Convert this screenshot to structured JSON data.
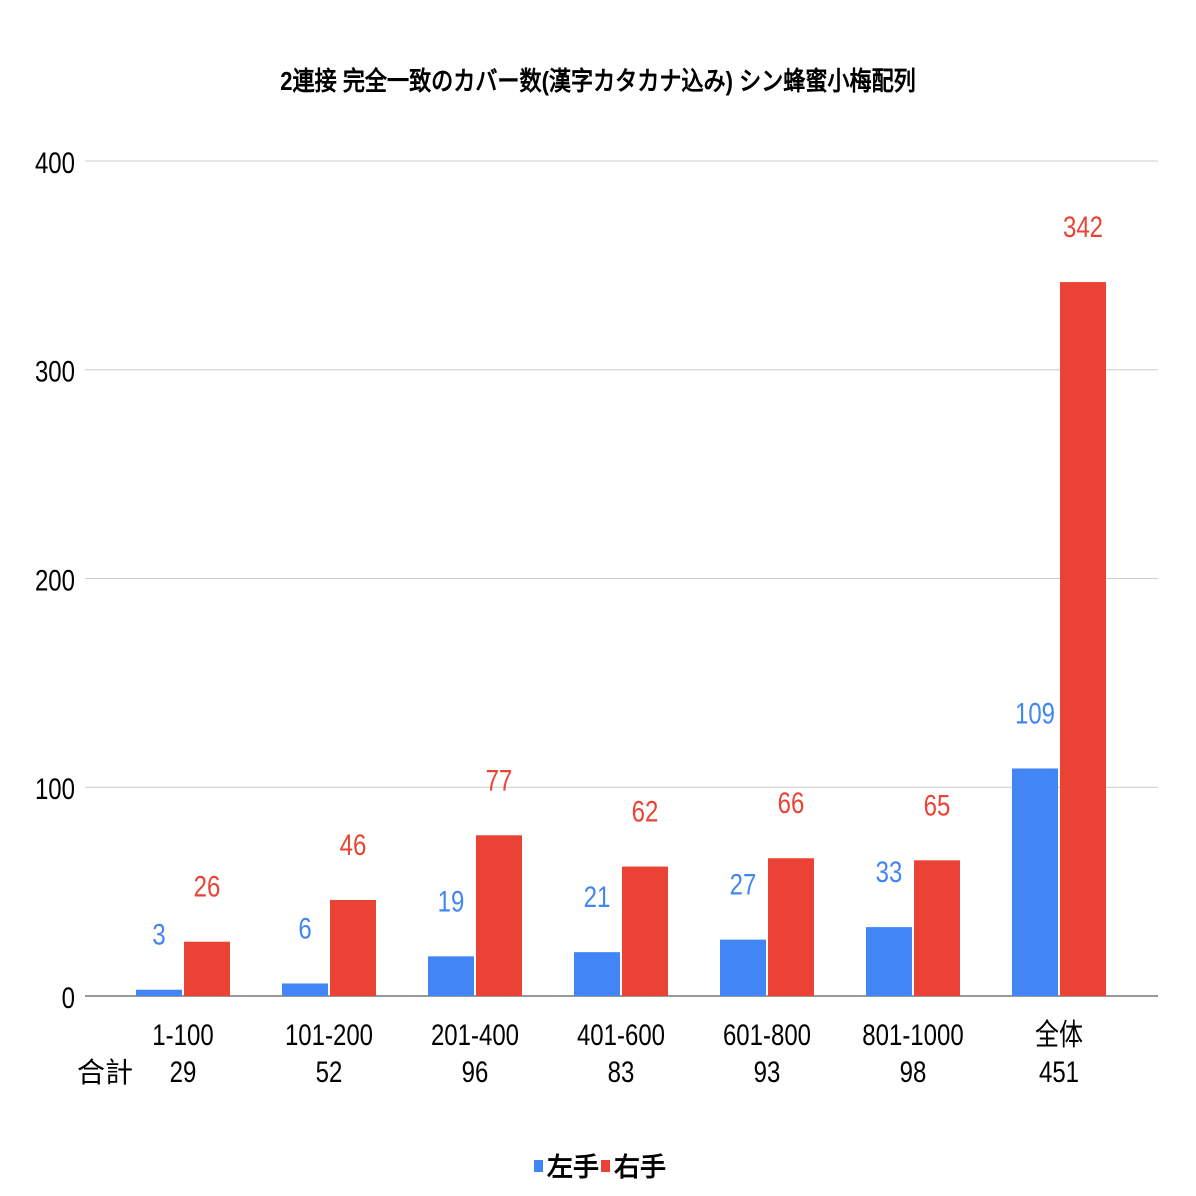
{
  "chart_data": {
    "type": "bar",
    "title": "2連接 完全一致のカバー数(漢字カタカナ込み) シン蜂蜜小梅配列",
    "categories": [
      "1-100",
      "101-200",
      "201-400",
      "401-600",
      "601-800",
      "801-1000",
      "全体"
    ],
    "totals_label": "合計",
    "totals": [
      "29",
      "52",
      "96",
      "83",
      "93",
      "98",
      "451"
    ],
    "series": [
      {
        "name": "左手",
        "color": "#4285f4",
        "values": [
          3,
          6,
          19,
          21,
          27,
          33,
          109
        ]
      },
      {
        "name": "右手",
        "color": "#ea4335",
        "values": [
          26,
          46,
          77,
          62,
          66,
          65,
          342
        ]
      }
    ],
    "ylim": [
      0,
      400
    ],
    "yticks": [
      0,
      100,
      200,
      300,
      400
    ],
    "grid": true,
    "legend": "bottom",
    "xlabel": "",
    "ylabel": ""
  }
}
